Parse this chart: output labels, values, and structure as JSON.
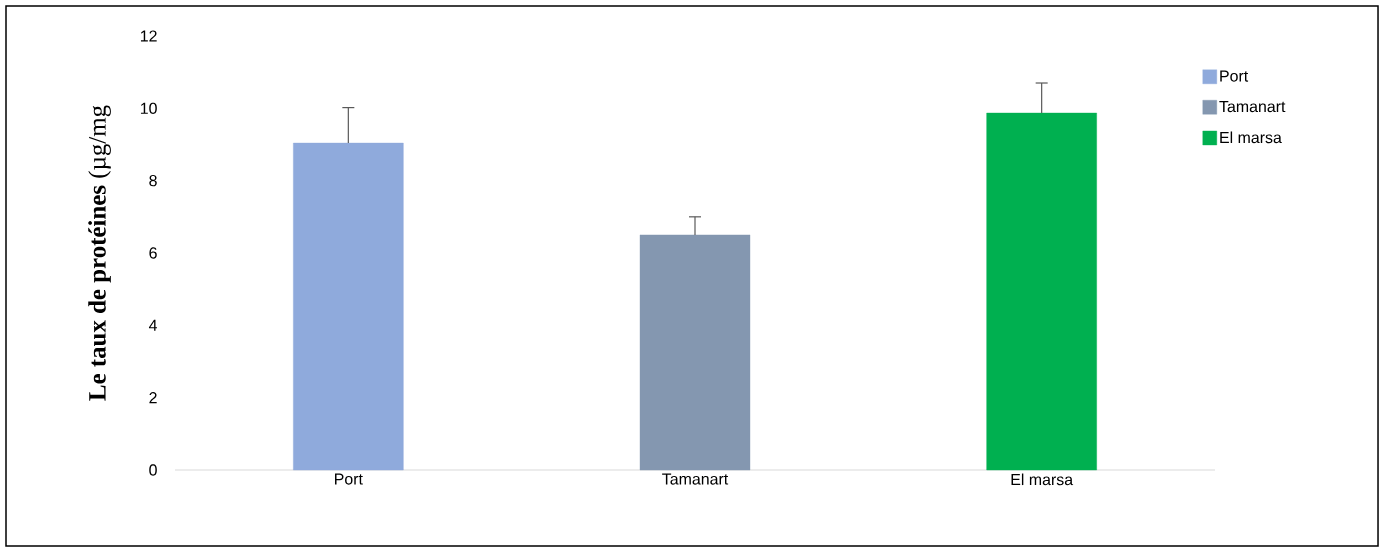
{
  "chart_data": {
    "type": "bar",
    "ylabel": "**Le taux de protéines** (µg/mg",
    "categories": [
      "Port",
      "Tamanart",
      "El marsa"
    ],
    "series": [
      {
        "name": "Port",
        "color": "#8faadc",
        "values": [
          9.04,
          null,
          null
        ],
        "errors": [
          0.98,
          null,
          null
        ]
      },
      {
        "name": "Tamanart",
        "color": "#8497b0",
        "values": [
          null,
          6.5,
          null
        ],
        "errors": [
          null,
          0.5,
          null
        ]
      },
      {
        "name": "El marsa",
        "color": "#00b050",
        "values": [
          null,
          null,
          9.87
        ],
        "errors": [
          null,
          null,
          0.83
        ]
      }
    ],
    "ylim": [
      0,
      12
    ],
    "yticks": [
      0,
      2,
      4,
      6,
      8,
      10,
      12
    ],
    "legend": "right"
  }
}
